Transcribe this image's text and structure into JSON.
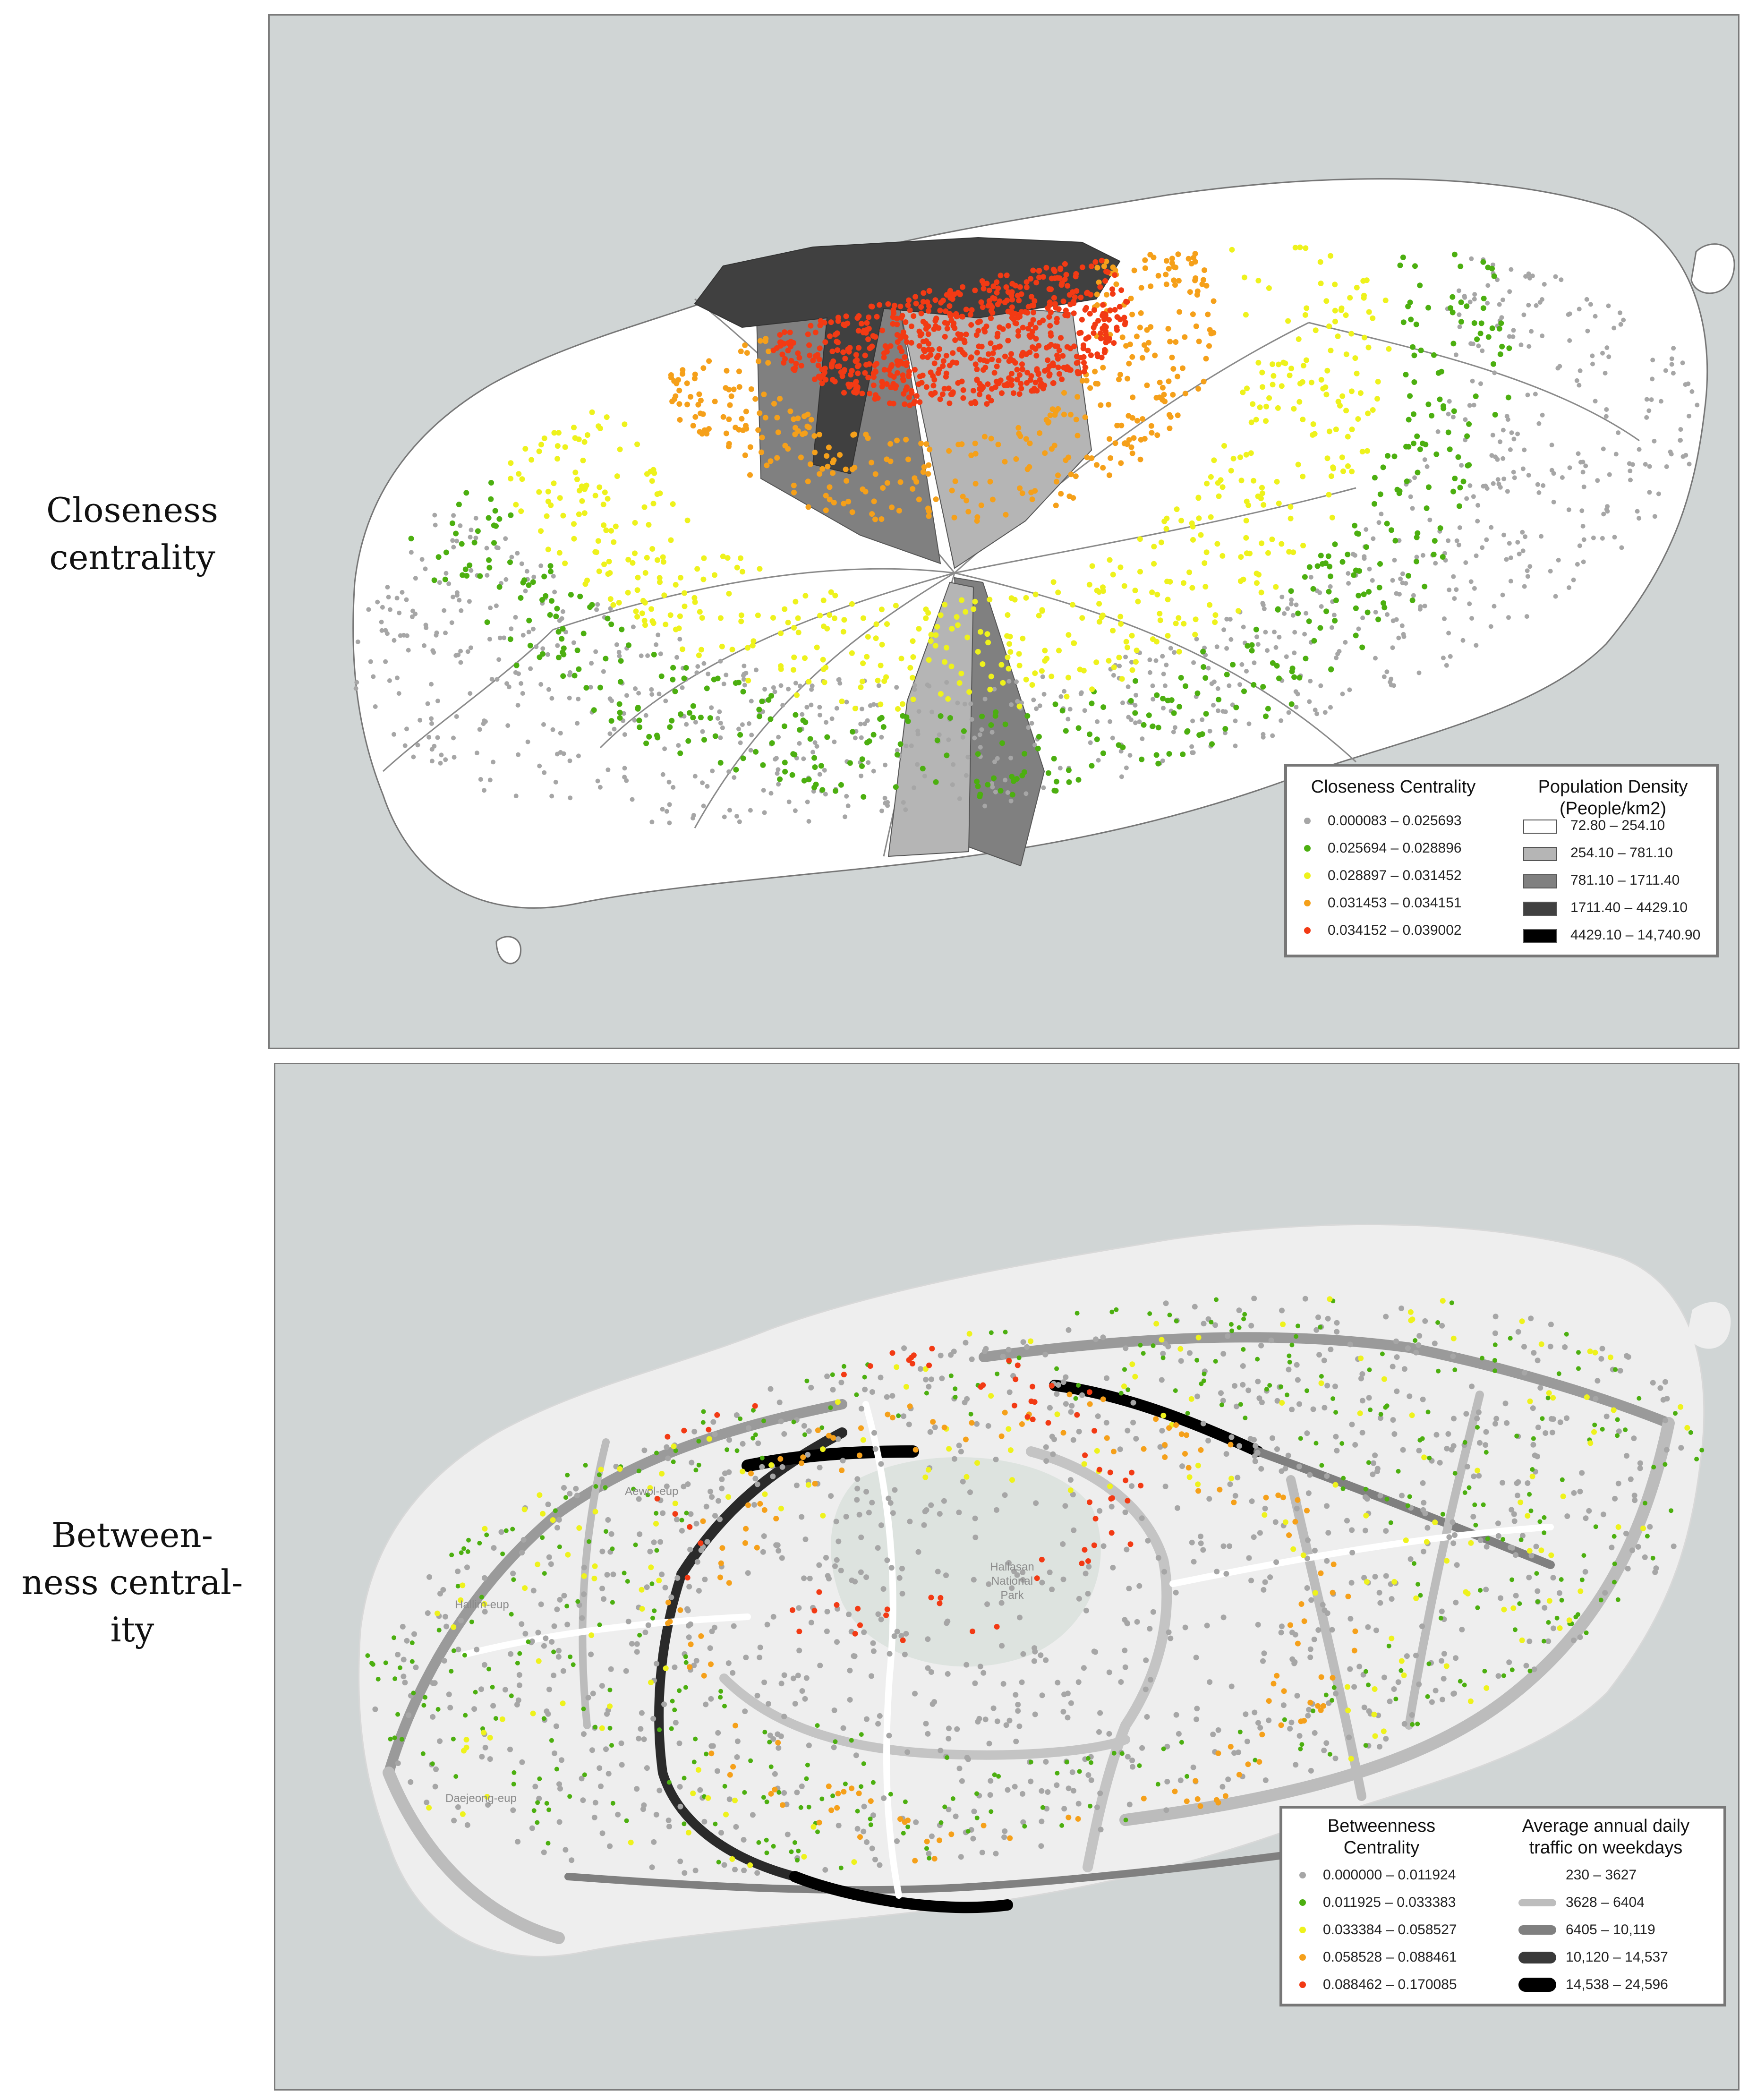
{
  "panels": {
    "top": {
      "row_label_lines": [
        "Closeness",
        "centrality"
      ],
      "legend": {
        "left_title": "Closeness Centrality",
        "right_title_lines": [
          "Population Density",
          "(People/km2)"
        ],
        "point_classes": [
          {
            "label": "0.000083 – 0.025693",
            "color": "#a6a6a6"
          },
          {
            "label": "0.025694 – 0.028896",
            "color": "#4caf10"
          },
          {
            "label": "0.028897 – 0.031452",
            "color": "#eef21c"
          },
          {
            "label": "0.031453 – 0.034151",
            "color": "#f5a01a"
          },
          {
            "label": "0.034152 – 0.039002",
            "color": "#f23a14"
          }
        ],
        "area_classes": [
          {
            "label": "72.80 – 254.10",
            "color": "#ffffff"
          },
          {
            "label": "254.10 – 781.10",
            "color": "#b5b5b5"
          },
          {
            "label": "781.10 – 1711.40",
            "color": "#808080"
          },
          {
            "label": "1711.40 – 4429.10",
            "color": "#404040"
          },
          {
            "label": "4429.10 – 14,740.90",
            "color": "#000000"
          }
        ]
      }
    },
    "bottom": {
      "row_label_lines": [
        "Between-",
        "ness central-",
        "ity"
      ],
      "map_labels": {
        "park_lines": [
          "Hallasan",
          "National",
          "Park"
        ],
        "town_aewol": "Aewol-eup",
        "town_hallim": "Hallim-eup",
        "town_daejeong": "Daejeong-eup"
      },
      "legend": {
        "left_title_lines": [
          "Betweenness",
          "Centrality"
        ],
        "right_title_lines": [
          "Average annual daily",
          "traffic on weekdays"
        ],
        "point_classes": [
          {
            "label": "0.000000 – 0.011924",
            "color": "#a6a6a6"
          },
          {
            "label": "0.011925 – 0.033383",
            "color": "#4caf10"
          },
          {
            "label": "0.033384 – 0.058527",
            "color": "#eef21c"
          },
          {
            "label": "0.058528 – 0.088461",
            "color": "#f5a01a"
          },
          {
            "label": "0.088462 – 0.170085",
            "color": "#f23a14"
          }
        ],
        "line_classes": [
          {
            "label": "230 – 3627",
            "color": "#e6e6e6"
          },
          {
            "label": "3628 – 6404",
            "color": "#bdbdbd"
          },
          {
            "label": "6405 – 10,119",
            "color": "#808080"
          },
          {
            "label": "10,120 – 14,537",
            "color": "#3a3a3a"
          },
          {
            "label": "14,538 – 24,596",
            "color": "#000000"
          }
        ]
      }
    }
  }
}
